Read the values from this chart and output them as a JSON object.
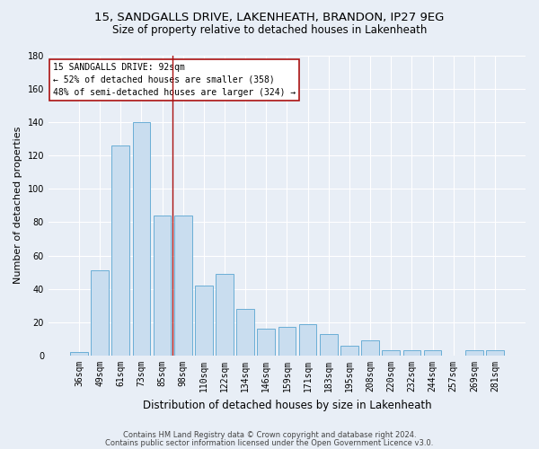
{
  "title_line1": "15, SANDGALLS DRIVE, LAKENHEATH, BRANDON, IP27 9EG",
  "title_line2": "Size of property relative to detached houses in Lakenheath",
  "xlabel": "Distribution of detached houses by size in Lakenheath",
  "ylabel": "Number of detached properties",
  "categories": [
    "36sqm",
    "49sqm",
    "61sqm",
    "73sqm",
    "85sqm",
    "98sqm",
    "110sqm",
    "122sqm",
    "134sqm",
    "146sqm",
    "159sqm",
    "171sqm",
    "183sqm",
    "195sqm",
    "208sqm",
    "220sqm",
    "232sqm",
    "244sqm",
    "257sqm",
    "269sqm",
    "281sqm"
  ],
  "values": [
    2,
    51,
    126,
    140,
    84,
    84,
    42,
    49,
    28,
    16,
    17,
    19,
    13,
    6,
    9,
    3,
    3,
    3,
    0,
    3,
    3
  ],
  "bar_color": "#c9ddef",
  "bar_edge_color": "#6aaed6",
  "vline_x": 4.5,
  "vline_color": "#aa1111",
  "annotation_line1": "15 SANDGALLS DRIVE: 92sqm",
  "annotation_line2": "← 52% of detached houses are smaller (358)",
  "annotation_line3": "48% of semi-detached houses are larger (324) →",
  "annotation_box_facecolor": "#ffffff",
  "annotation_box_edgecolor": "#aa1111",
  "ylim": [
    0,
    180
  ],
  "yticks": [
    0,
    20,
    40,
    60,
    80,
    100,
    120,
    140,
    160,
    180
  ],
  "footer_line1": "Contains HM Land Registry data © Crown copyright and database right 2024.",
  "footer_line2": "Contains public sector information licensed under the Open Government Licence v3.0.",
  "fig_facecolor": "#e8eef6",
  "plot_facecolor": "#e8eef6",
  "grid_color": "#ffffff",
  "title1_fontsize": 9.5,
  "title2_fontsize": 8.5,
  "ylabel_fontsize": 8,
  "xlabel_fontsize": 8.5,
  "tick_fontsize": 7,
  "annot_fontsize": 7,
  "footer_fontsize": 6
}
